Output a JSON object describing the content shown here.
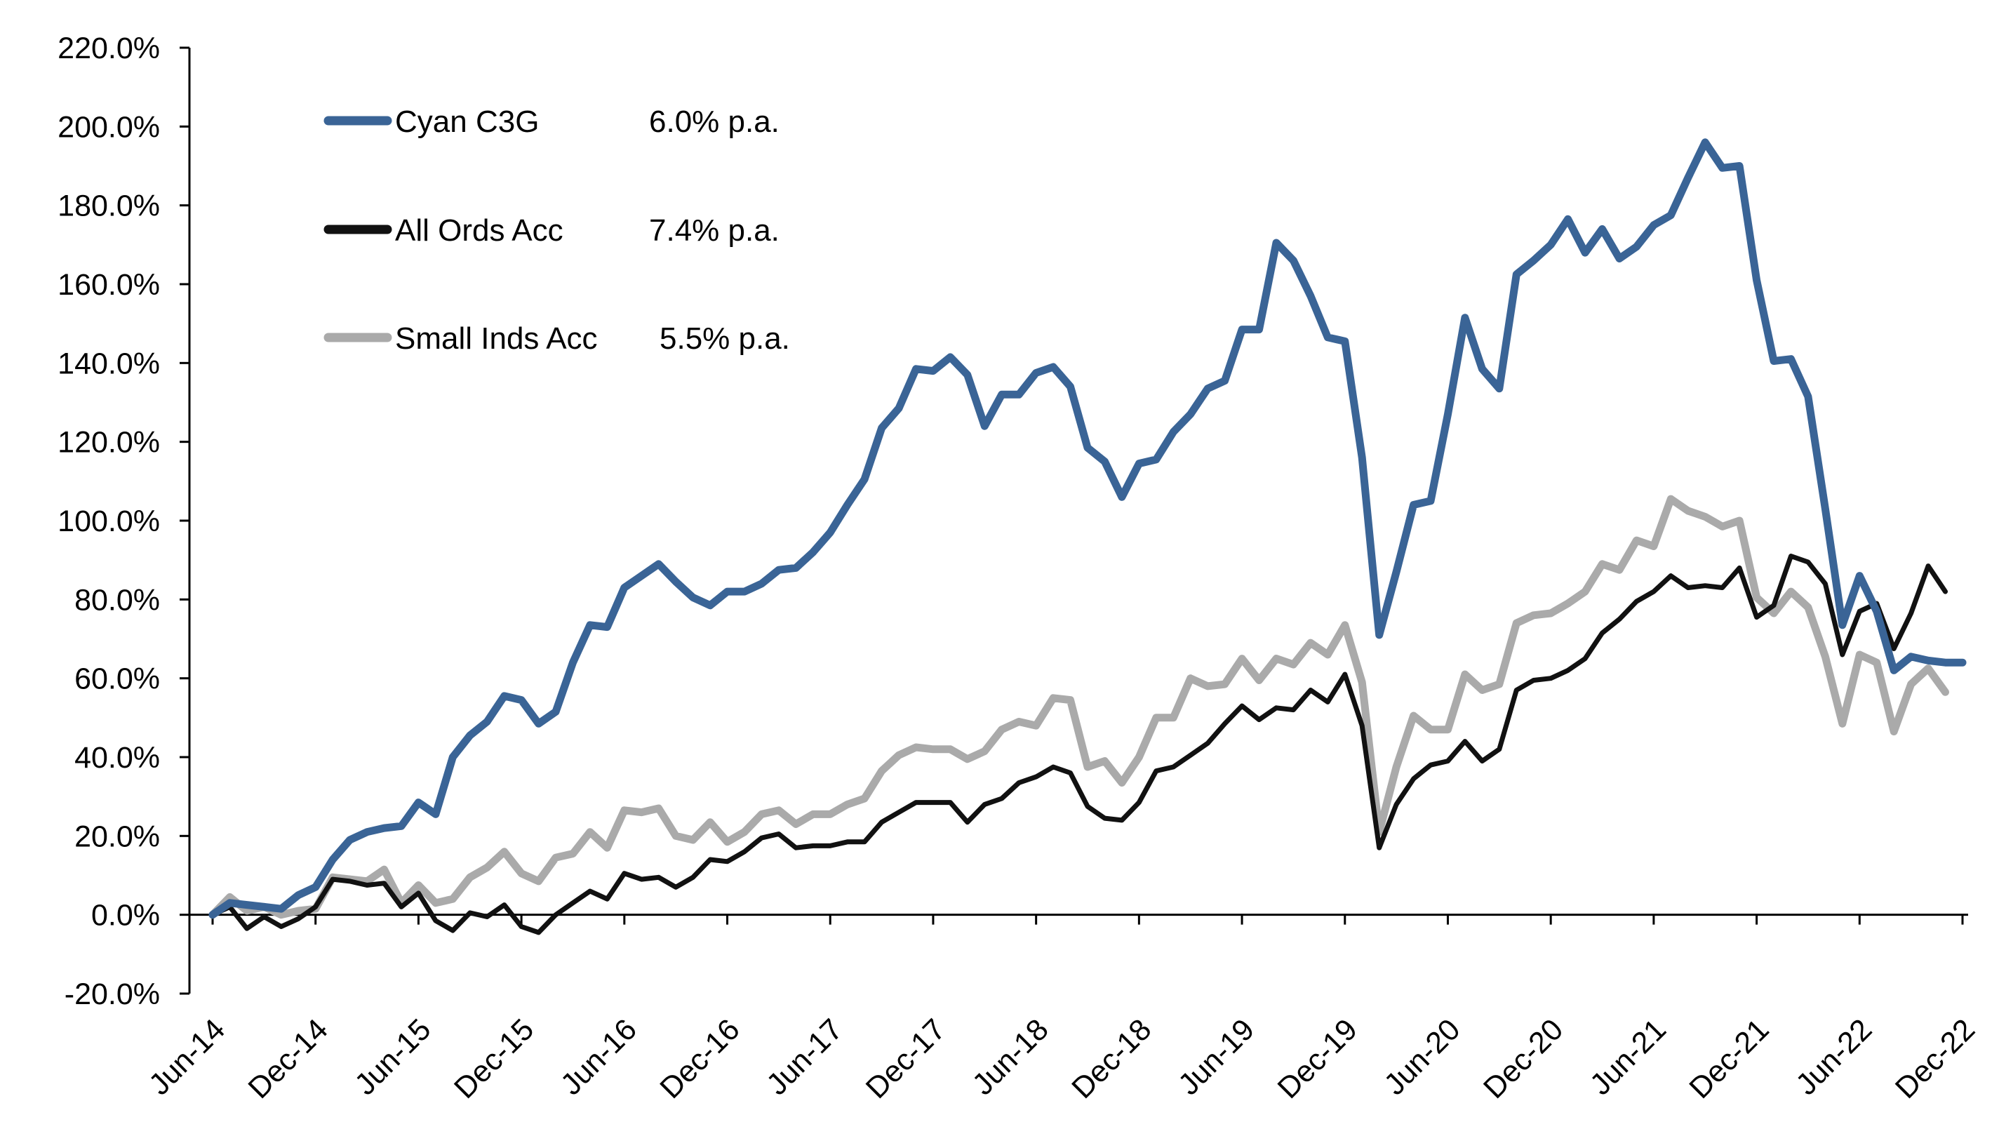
{
  "chart_data": {
    "type": "line",
    "title": "",
    "xlabel": "",
    "ylabel": "",
    "ylim": [
      -20,
      220
    ],
    "yticks": [
      "-20.0%",
      "0.0%",
      "20.0%",
      "40.0%",
      "60.0%",
      "80.0%",
      "100.0%",
      "120.0%",
      "140.0%",
      "160.0%",
      "180.0%",
      "200.0%",
      "220.0%"
    ],
    "ytick_values": [
      -20,
      0,
      20,
      40,
      60,
      80,
      100,
      120,
      140,
      160,
      180,
      200,
      220
    ],
    "xticks": [
      "Jun-14",
      "Dec-14",
      "Jun-15",
      "Dec-15",
      "Jun-16",
      "Dec-16",
      "Jun-17",
      "Dec-17",
      "Jun-18",
      "Dec-18",
      "Jun-19",
      "Dec-19",
      "Jun-20",
      "Dec-20",
      "Jun-21",
      "Dec-21",
      "Jun-22",
      "Dec-22"
    ],
    "x_start": "Jun-14",
    "x_end": "Dec-22",
    "x_frequency": "monthly",
    "grid": false,
    "legend_position": "top-left",
    "series": [
      {
        "name": "Cyan C3G",
        "annotation": "6.0% p.a.",
        "color": "#3A6496",
        "values": [
          0,
          3,
          2.5,
          2,
          1.5,
          5,
          7,
          14,
          19,
          21,
          22,
          22.5,
          28.5,
          25.5,
          40,
          45.5,
          49,
          55.5,
          54.5,
          48.5,
          51.5,
          64,
          73.5,
          73,
          83,
          86,
          89,
          84.5,
          80.5,
          78.5,
          82,
          82,
          84,
          87.5,
          88,
          92,
          97,
          104,
          110.5,
          123.5,
          128.5,
          138.5,
          138,
          141.5,
          137,
          124,
          132,
          132,
          137.5,
          139,
          134,
          118.5,
          115,
          106,
          114.5,
          115.5,
          122.5,
          127,
          133.5,
          135.5,
          148.5,
          148.5,
          170.5,
          166,
          157,
          146.5,
          145.5,
          116,
          71,
          87,
          104,
          105,
          127,
          151.5,
          138.5,
          133.5,
          162.5,
          166,
          170,
          176.5,
          168,
          174,
          166.5,
          169.5,
          175,
          177.5,
          187,
          196,
          189.5,
          190,
          161,
          140.5,
          141,
          131.5,
          103,
          73.5,
          86,
          77,
          62,
          65.5,
          64.5,
          64,
          64
        ]
      },
      {
        "name": "All Ords Acc",
        "annotation": "7.4% p.a.",
        "color": "#111111",
        "values": [
          0,
          2,
          -3.5,
          -0.5,
          -3,
          -1,
          2,
          9,
          8.5,
          7.5,
          8,
          2,
          5.5,
          -1.5,
          -4,
          0.5,
          -0.5,
          2.5,
          -3,
          -4.5,
          0,
          3,
          6,
          4,
          10.5,
          9,
          9.5,
          7,
          9.5,
          14,
          13.5,
          16,
          19.5,
          20.5,
          17,
          17.5,
          17.5,
          18.5,
          18.5,
          23.5,
          26,
          28.5,
          28.5,
          28.5,
          23.5,
          28,
          29.5,
          33.5,
          35,
          37.5,
          36,
          27.5,
          24.5,
          24,
          28.5,
          36.5,
          37.5,
          40.5,
          43.5,
          48.5,
          53,
          49.5,
          52.5,
          52,
          57,
          54,
          61,
          48,
          17,
          28,
          34.5,
          38,
          39,
          44,
          39,
          42,
          57,
          59.5,
          60,
          62,
          65,
          71.5,
          75,
          79.5,
          82,
          86,
          83,
          83.5,
          83,
          88,
          75.5,
          78.5,
          91,
          89.5,
          84,
          66,
          77,
          79,
          67.5,
          76.5,
          88.5,
          82
        ]
      },
      {
        "name": "Small Inds Acc",
        "annotation": "5.5% p.a.",
        "color": "#AAAAAA",
        "values": [
          0,
          4.5,
          1,
          2,
          0,
          1,
          1.5,
          9.5,
          9,
          8.5,
          11.5,
          3,
          7.5,
          3,
          4,
          9.5,
          12,
          16,
          10.5,
          8.5,
          14.5,
          15.5,
          21,
          17,
          26.5,
          26,
          27,
          20,
          19,
          23.5,
          18.5,
          21,
          25.5,
          26.5,
          23,
          25.5,
          25.5,
          28,
          29.5,
          36.5,
          40.5,
          42.5,
          42,
          42,
          39.5,
          41.5,
          47,
          49,
          48,
          55,
          54.5,
          37.5,
          39,
          33.5,
          40,
          50,
          50,
          60,
          58,
          58.5,
          65,
          59.5,
          65,
          63.5,
          69,
          66,
          73.5,
          59,
          21,
          37.5,
          50.5,
          47,
          47,
          61,
          57,
          58.5,
          74,
          76,
          76.5,
          79,
          82,
          89,
          87.5,
          95,
          93.5,
          105.5,
          102.5,
          101,
          98.5,
          100,
          80.5,
          76.5,
          82,
          78,
          65.5,
          48.5,
          66,
          64,
          46.5,
          58.5,
          62.5,
          56.5
        ]
      }
    ]
  }
}
